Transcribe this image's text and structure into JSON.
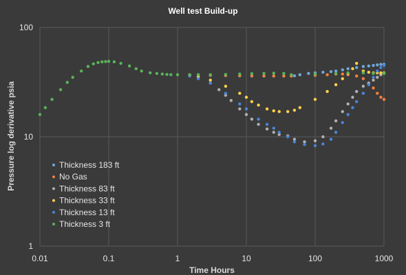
{
  "chart_data": {
    "type": "scatter",
    "title": "Well test Build-up",
    "xlabel": "Time Hours",
    "ylabel": "Pressure log derivative psia",
    "xscale": "log",
    "yscale": "log",
    "xlim": [
      0.01,
      1000
    ],
    "ylim": [
      1,
      100
    ],
    "xticks": [
      "0.01",
      "0.1",
      "1",
      "10",
      "100",
      "1000"
    ],
    "yticks": [
      "1",
      "10",
      "100"
    ],
    "grid": true,
    "legend_position": "bottom-left",
    "series": [
      {
        "name": "Thickness 183 ft",
        "color": "#6fa8dc",
        "x": [
          2,
          3,
          5,
          8,
          12,
          18,
          25,
          35,
          45,
          50,
          60,
          80,
          100,
          130,
          170,
          200,
          250,
          300,
          400,
          500,
          600,
          700,
          800,
          900,
          1000
        ],
        "y": [
          37,
          36.5,
          36.3,
          36.1,
          36,
          36,
          36,
          36,
          36,
          36.2,
          37,
          38,
          38.5,
          39,
          39.5,
          40,
          41,
          42,
          43,
          44,
          44.5,
          45,
          45.5,
          46,
          46
        ]
      },
      {
        "name": "No Gas",
        "color": "#f4813a",
        "x": [
          1.5,
          2,
          3,
          5,
          8,
          12,
          18,
          25,
          35,
          45,
          100,
          150,
          200,
          250,
          300,
          400,
          500,
          600,
          700,
          800,
          900,
          1000
        ],
        "y": [
          37,
          36.9,
          36.7,
          36.5,
          36.3,
          36.2,
          36.1,
          36,
          36,
          36,
          36.5,
          37,
          37.5,
          37.5,
          37,
          36,
          34,
          31,
          28,
          25,
          23,
          22
        ]
      },
      {
        "name": "Thickness 83 ft",
        "color": "#b0b0b0",
        "x": [
          1.5,
          2,
          3,
          4,
          5,
          6,
          8,
          10,
          12,
          15,
          20,
          25,
          30,
          40,
          50,
          70,
          100,
          130,
          170,
          200,
          250,
          300,
          350,
          400,
          500,
          600,
          700,
          800,
          900,
          1000
        ],
        "y": [
          36.5,
          35,
          31,
          27,
          24,
          21.5,
          18,
          16,
          14.5,
          13,
          11.8,
          11,
          10.5,
          10.2,
          9.5,
          9,
          9.2,
          10,
          12,
          14,
          17,
          20,
          23,
          26,
          29,
          31,
          33,
          35,
          37,
          38
        ]
      },
      {
        "name": "Thickness 33 ft",
        "color": "#ffd24a",
        "x": [
          1.5,
          2,
          3,
          5,
          8,
          10,
          12,
          15,
          20,
          25,
          30,
          40,
          50,
          60,
          100,
          150,
          200,
          250,
          300,
          350,
          400,
          500,
          600,
          700,
          800,
          900,
          1000
        ],
        "y": [
          36.5,
          35.5,
          33,
          29,
          25,
          23,
          21,
          19.5,
          18,
          17.3,
          17,
          17,
          17.5,
          18.5,
          22,
          26,
          30,
          34,
          38,
          42,
          47,
          40,
          39,
          38.5,
          38.5,
          38.5,
          38.5
        ]
      },
      {
        "name": "Thickness 13 ft",
        "color": "#4a86d8",
        "x": [
          1.5,
          2,
          3,
          5,
          8,
          10,
          15,
          20,
          25,
          30,
          40,
          50,
          70,
          100,
          130,
          170,
          200,
          250,
          300,
          350,
          400,
          500,
          600,
          700,
          800,
          900,
          1000
        ],
        "y": [
          36,
          34,
          31,
          25,
          20,
          18,
          14.5,
          13,
          12,
          11,
          10,
          9,
          8.5,
          8.3,
          8.6,
          9.5,
          11,
          13.5,
          16,
          18.5,
          21,
          25,
          30,
          35,
          40,
          43,
          45
        ]
      },
      {
        "name": "Thickness 3 ft",
        "color": "#5ab45a",
        "x": [
          0.01,
          0.012,
          0.015,
          0.02,
          0.025,
          0.03,
          0.04,
          0.05,
          0.06,
          0.07,
          0.08,
          0.09,
          0.1,
          0.12,
          0.15,
          0.2,
          0.25,
          0.3,
          0.4,
          0.5,
          0.6,
          0.7,
          0.8,
          1,
          1.5,
          2,
          3,
          5,
          8,
          12,
          18,
          25,
          35,
          45,
          100,
          200,
          300,
          500,
          700,
          1000
        ],
        "y": [
          16,
          18.5,
          22,
          27,
          31.5,
          35,
          40,
          44,
          46.5,
          47.8,
          48.5,
          48.8,
          49,
          48.5,
          47,
          44.5,
          42,
          40,
          38.5,
          38,
          37.5,
          37.2,
          37,
          37,
          37,
          37,
          37,
          37.2,
          37.5,
          37.8,
          38,
          38.2,
          38,
          37,
          37.5,
          38,
          38.5,
          38.5,
          38,
          38
        ]
      }
    ]
  }
}
